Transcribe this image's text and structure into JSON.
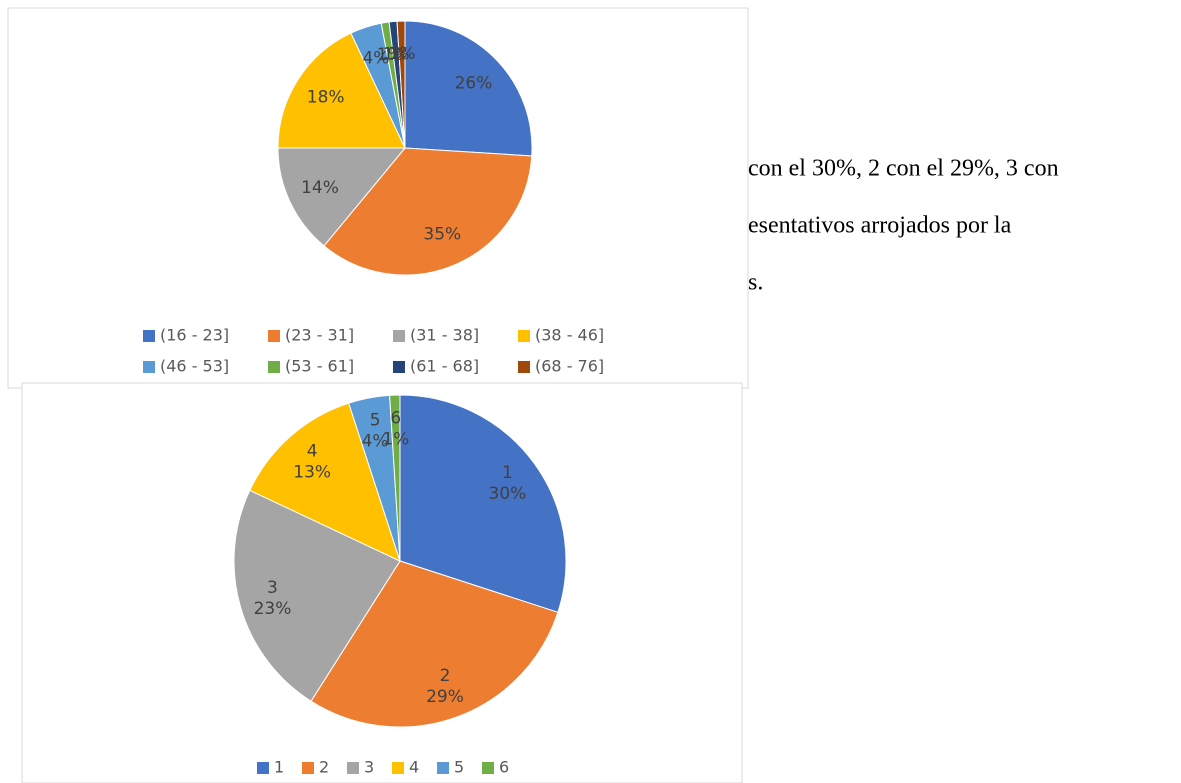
{
  "chart_data": [
    {
      "type": "pie",
      "categories": [
        "(16 - 23]",
        "(23 - 31]",
        "(31 - 38]",
        "(38 - 46]",
        "(46 - 53]",
        "(53 - 61]",
        "(61 - 68]",
        "(68 - 76]"
      ],
      "values": [
        26,
        35,
        14,
        18,
        4,
        1,
        1,
        1
      ],
      "value_labels": [
        "26%",
        "35%",
        "14%",
        "18%",
        "4%",
        "1%",
        "1%",
        "1%"
      ],
      "colors": [
        "#4472c4",
        "#ed7d31",
        "#a5a5a5",
        "#ffc000",
        "#5b9bd5",
        "#70ad47",
        "#264478",
        "#9e480e"
      ],
      "legend": "bottom"
    },
    {
      "type": "pie",
      "categories": [
        "1",
        "2",
        "3",
        "4",
        "5",
        "6"
      ],
      "values": [
        30,
        29,
        23,
        13,
        4,
        1
      ],
      "value_labels": [
        "30%",
        "29%",
        "23%",
        "13%",
        "4%",
        "1%"
      ],
      "colors": [
        "#4472c4",
        "#ed7d31",
        "#a5a5a5",
        "#ffc000",
        "#5b9bd5",
        "#70ad47"
      ],
      "legend": "bottom"
    }
  ],
  "document": {
    "lines": [
      "con el 30%, 2 con el 29%, 3 con",
      "esentativos arrojados por la",
      "s."
    ]
  }
}
